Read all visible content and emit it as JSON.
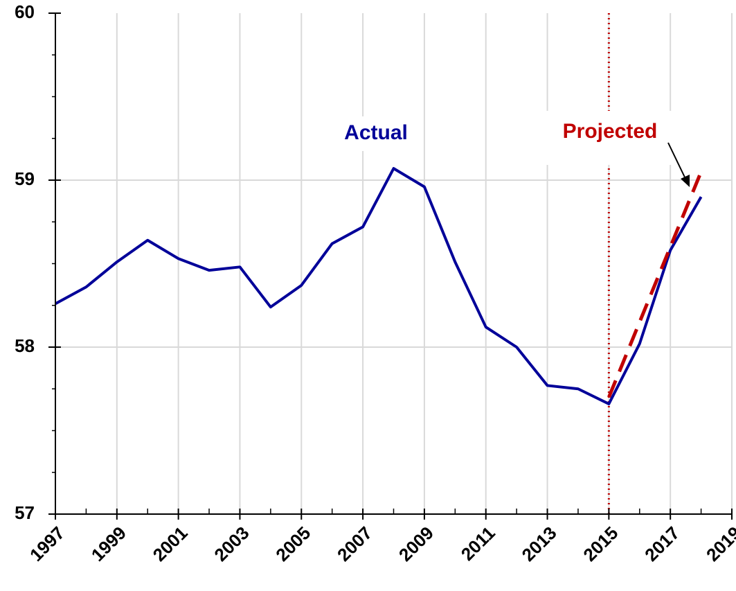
{
  "chart_data": {
    "type": "line",
    "x": [
      1997,
      1998,
      1999,
      2000,
      2001,
      2002,
      2003,
      2004,
      2005,
      2006,
      2007,
      2008,
      2009,
      2010,
      2011,
      2012,
      2013,
      2014,
      2015,
      2016,
      2017,
      2018
    ],
    "series": [
      {
        "name": "Actual",
        "color": "#000099",
        "dash": false,
        "values": [
          58.26,
          58.36,
          58.51,
          58.64,
          58.53,
          58.46,
          58.48,
          58.24,
          58.37,
          58.62,
          58.72,
          59.07,
          58.96,
          58.51,
          58.12,
          58.0,
          57.77,
          57.75,
          57.66,
          58.02,
          58.58,
          58.9
        ]
      },
      {
        "name": "Projected",
        "color": "#c00000",
        "dash": true,
        "values": [
          null,
          null,
          null,
          null,
          null,
          null,
          null,
          null,
          null,
          null,
          null,
          null,
          null,
          null,
          null,
          null,
          null,
          null,
          57.7,
          58.15,
          58.6,
          59.05
        ]
      }
    ],
    "xlim": [
      1997,
      2019
    ],
    "xticks": [
      1997,
      1999,
      2001,
      2003,
      2005,
      2007,
      2009,
      2011,
      2013,
      2015,
      2017,
      2019
    ],
    "ylim": [
      57,
      60
    ],
    "yticks": [
      57,
      58,
      59,
      60
    ],
    "vline": 2015,
    "vline_color": "#c00000",
    "grid": true
  }
}
